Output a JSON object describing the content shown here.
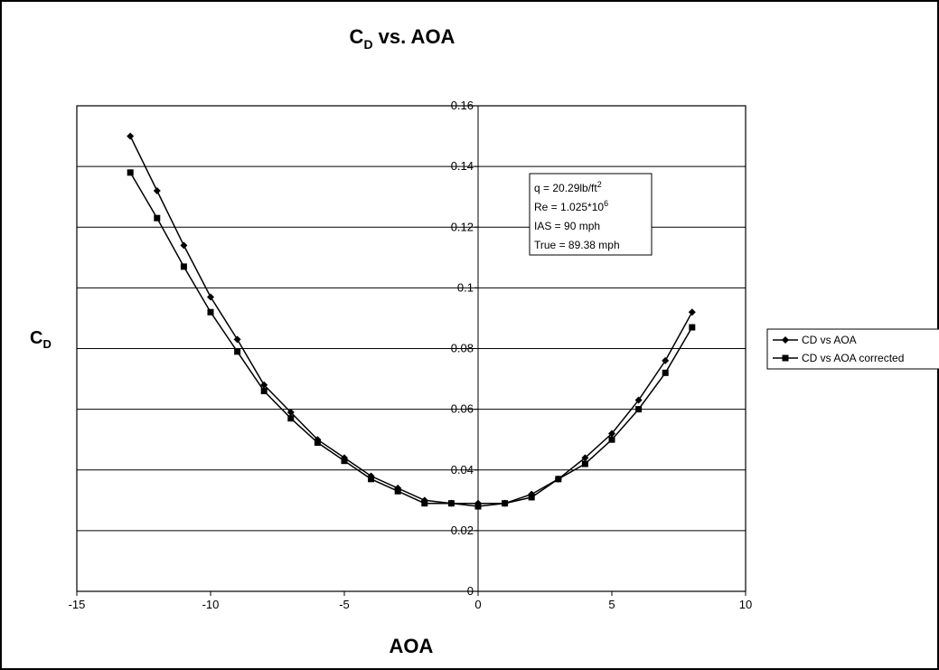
{
  "chart_data": {
    "type": "line",
    "title_main": "C",
    "title_sub": "D",
    "title_rest": " vs. AOA",
    "xlabel": "AOA",
    "ylabel_main": "C",
    "ylabel_sub": "D",
    "xlim": [
      -15,
      10
    ],
    "ylim": [
      0,
      0.16
    ],
    "xticks": [
      -15,
      -10,
      -5,
      0,
      5,
      10
    ],
    "xtick_labels": [
      "-15",
      "-10",
      "-5",
      "0",
      "5",
      "10"
    ],
    "yticks": [
      0,
      0.02,
      0.04,
      0.06,
      0.08,
      0.1,
      0.12,
      0.14,
      0.16
    ],
    "ytick_labels": [
      "0",
      "0.02",
      "0.04",
      "0.06",
      "0.08",
      "0.1",
      "0.12",
      "0.14",
      "0.16"
    ],
    "grid": "horizontal",
    "legend_position": "right",
    "annotation": {
      "lines": [
        {
          "text": "q = 20.29lb/ft",
          "sup": "2"
        },
        {
          "text": "Re = 1.025*10",
          "sup": "6"
        },
        {
          "text": "IAS = 90 mph",
          "sup": ""
        },
        {
          "text": "True = 89.38  mph",
          "sup": ""
        }
      ]
    },
    "x": [
      -13,
      -12,
      -11,
      -10,
      -9,
      -8,
      -7,
      -6,
      -5,
      -4,
      -3,
      -2,
      -1,
      0,
      1,
      2,
      3,
      4,
      5,
      6,
      7,
      8
    ],
    "series": [
      {
        "name": "CD vs AOA",
        "marker": "diamond",
        "values": [
          0.15,
          0.132,
          0.114,
          0.097,
          0.083,
          0.068,
          0.059,
          0.05,
          0.044,
          0.038,
          0.034,
          0.03,
          0.029,
          0.029,
          0.029,
          0.032,
          0.037,
          0.044,
          0.052,
          0.063,
          0.076,
          0.092
        ]
      },
      {
        "name": "CD vs AOA corrected",
        "marker": "square",
        "values": [
          0.138,
          0.123,
          0.107,
          0.092,
          0.079,
          0.066,
          0.057,
          0.049,
          0.043,
          0.037,
          0.033,
          0.029,
          0.029,
          0.028,
          0.029,
          0.031,
          0.037,
          0.042,
          0.05,
          0.06,
          0.072,
          0.087
        ]
      }
    ]
  }
}
